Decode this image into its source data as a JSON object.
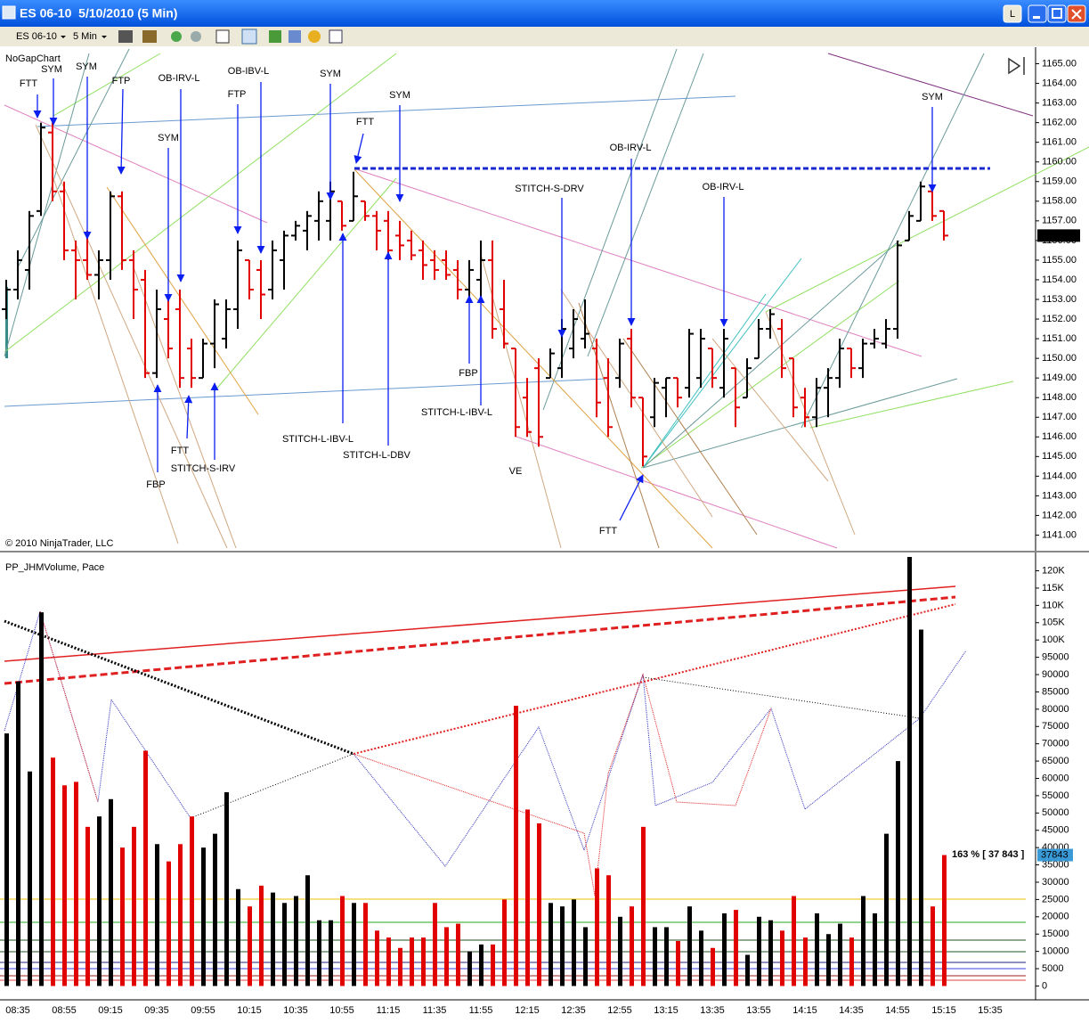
{
  "window": {
    "title": "ES 06-10  5/10/2010 (5 Min)",
    "button": "L"
  },
  "toolbar": {
    "instrument": "ES 06-10",
    "interval": "5 Min"
  },
  "price_panel": {
    "label": "NoGapChart",
    "copyright": "© 2010 NinjaTrader, LLC",
    "ylim": [
      1140.25,
      1165.75
    ],
    "yticks": [
      {
        "value": 1141,
        "label": "1141.00"
      },
      {
        "value": 1142,
        "label": "1142.00"
      },
      {
        "value": 1143,
        "label": "1143.00"
      },
      {
        "value": 1144,
        "label": "1144.00"
      },
      {
        "value": 1145,
        "label": "1145.00"
      },
      {
        "value": 1146,
        "label": "1146.00"
      },
      {
        "value": 1147,
        "label": "1147.00"
      },
      {
        "value": 1148,
        "label": "1148.00"
      },
      {
        "value": 1149,
        "label": "1149.00"
      },
      {
        "value": 1150,
        "label": "1150.00"
      },
      {
        "value": 1151,
        "label": "1151.00"
      },
      {
        "value": 1152,
        "label": "1152.00"
      },
      {
        "value": 1153,
        "label": "1153.00"
      },
      {
        "value": 1154,
        "label": "1154.00"
      },
      {
        "value": 1155,
        "label": "1155.00"
      },
      {
        "value": 1156,
        "label": "1156.00"
      },
      {
        "value": 1157,
        "label": "1157.00"
      },
      {
        "value": 1158,
        "label": "1158.00"
      },
      {
        "value": 1159,
        "label": "1159.00"
      },
      {
        "value": 1160,
        "label": "1160.00"
      },
      {
        "value": 1161,
        "label": "1161.00"
      },
      {
        "value": 1162,
        "label": "1162.00"
      },
      {
        "value": 1163,
        "label": "1163.00"
      },
      {
        "value": 1164,
        "label": "1164.00"
      },
      {
        "value": 1165,
        "label": "1165.00"
      }
    ],
    "last_price": 1156.25,
    "up_color": "#000000",
    "down_color": "#e00000",
    "annotations": [
      "FTT",
      "SYM",
      "SYM",
      "FTP",
      "OB-IRV-L",
      "SYM",
      "OB-IBV-L",
      "FTP",
      "SYM",
      "FTT",
      "SYM",
      "STITCH-S-DRV",
      "OB-IRV-L",
      "OB-IRV-L",
      "SYM",
      "FBP",
      "STITCH-L-IBV-L",
      "STITCH-L-IBV-L",
      "STITCH-L-DBV",
      "FBP",
      "FTT",
      "STITCH-S-IRV",
      "VE",
      "FTT"
    ],
    "ohlc": [
      [
        1152.5,
        1154,
        1152,
        1153.5
      ],
      [
        1153.5,
        1155.5,
        1153,
        1155
      ],
      [
        1154.5,
        1157.5,
        1153.5,
        1157.25
      ],
      [
        1157.5,
        1162,
        1157.25,
        1161.75
      ],
      [
        1161.5,
        1162,
        1158,
        1158.5
      ],
      [
        1158.5,
        1159,
        1155,
        1155.5
      ],
      [
        1155.5,
        1156,
        1153,
        1155
      ],
      [
        1155,
        1156.5,
        1154,
        1154.25
      ],
      [
        1154.25,
        1155.5,
        1153,
        1155
      ],
      [
        1155,
        1158.5,
        1154,
        1158.25
      ],
      [
        1158.25,
        1158.5,
        1154.5,
        1155
      ],
      [
        1155,
        1155.5,
        1152,
        1153.5
      ],
      [
        1154,
        1154.5,
        1149,
        1149.25
      ],
      [
        1149.25,
        1153.5,
        1149,
        1152.5
      ],
      [
        1152,
        1153,
        1150,
        1150.5
      ],
      [
        1152.5,
        1153.5,
        1148.5,
        1149
      ],
      [
        1150.5,
        1151,
        1148.5,
        1149
      ],
      [
        1149,
        1151,
        1149,
        1150.75
      ],
      [
        1150.75,
        1153,
        1149.5,
        1152.75
      ],
      [
        1151,
        1153,
        1150.5,
        1152.5
      ],
      [
        1152.5,
        1156,
        1151.5,
        1155.5
      ],
      [
        1155,
        1155,
        1153,
        1153.5
      ],
      [
        1154.5,
        1155,
        1152,
        1153.25
      ],
      [
        1153.5,
        1156,
        1153,
        1155.5
      ],
      [
        1155,
        1156.5,
        1153.5,
        1156.25
      ],
      [
        1156.25,
        1157,
        1156,
        1156.75
      ],
      [
        1156.5,
        1157.5,
        1155.5,
        1157.25
      ],
      [
        1157,
        1158.5,
        1156,
        1158
      ],
      [
        1157,
        1159,
        1156,
        1158.5
      ],
      [
        1158,
        1158,
        1156.5,
        1156.75
      ],
      [
        1157,
        1159.5,
        1157,
        1158.25
      ],
      [
        1158,
        1158,
        1157,
        1157.25
      ],
      [
        1157.25,
        1157.5,
        1155.5,
        1156.5
      ],
      [
        1157,
        1157.5,
        1155,
        1155.5
      ],
      [
        1156.25,
        1157,
        1155,
        1155.75
      ],
      [
        1156,
        1156.5,
        1155,
        1155.25
      ],
      [
        1155.5,
        1156,
        1154,
        1154.75
      ],
      [
        1155,
        1155.5,
        1154,
        1154.5
      ],
      [
        1155,
        1155.5,
        1154,
        1154.25
      ],
      [
        1154.5,
        1155,
        1153,
        1153.5
      ],
      [
        1153.5,
        1155,
        1153,
        1154.5
      ],
      [
        1154,
        1156,
        1153,
        1155
      ],
      [
        1155,
        1156,
        1151,
        1151.5
      ],
      [
        1152.5,
        1154,
        1150.5,
        1150.75
      ],
      [
        1150.5,
        1150.5,
        1146,
        1146.5
      ],
      [
        1148,
        1149,
        1146,
        1146.25
      ],
      [
        1149.5,
        1150,
        1145.5,
        1146
      ],
      [
        1149,
        1150.5,
        1149,
        1150.25
      ],
      [
        1149.5,
        1152,
        1149,
        1151.5
      ],
      [
        1150.5,
        1152.5,
        1150,
        1152
      ],
      [
        1151,
        1153,
        1150.5,
        1151.25
      ],
      [
        1150.5,
        1151,
        1147,
        1147.75
      ],
      [
        1149,
        1150,
        1146,
        1146.5
      ],
      [
        1149,
        1151,
        1148.5,
        1150.75
      ],
      [
        1151,
        1151.5,
        1147.5,
        1148
      ],
      [
        1148,
        1148,
        1144.5,
        1145
      ],
      [
        1147,
        1149,
        1146.5,
        1148.75
      ],
      [
        1148.5,
        1149,
        1147,
        1149
      ],
      [
        1149,
        1149,
        1147.5,
        1148
      ],
      [
        1148.5,
        1151.5,
        1148,
        1151.25
      ],
      [
        1149,
        1151.5,
        1148.5,
        1151
      ],
      [
        1150.5,
        1150.5,
        1148.5,
        1149
      ],
      [
        1148.5,
        1151.5,
        1148,
        1151
      ],
      [
        1149.5,
        1149.5,
        1146.5,
        1147.5
      ],
      [
        1148,
        1150,
        1148,
        1149.5
      ],
      [
        1150,
        1152,
        1150,
        1151.5
      ],
      [
        1151.5,
        1152.5,
        1151,
        1152.25
      ],
      [
        1151.5,
        1152,
        1149,
        1149.5
      ],
      [
        1150,
        1150,
        1147,
        1147.5
      ],
      [
        1148,
        1148.5,
        1146.5,
        1147
      ],
      [
        1147,
        1149,
        1146.5,
        1148.5
      ],
      [
        1148.5,
        1149.5,
        1147,
        1149
      ],
      [
        1149,
        1151,
        1148.5,
        1150.5
      ],
      [
        1150.5,
        1150.5,
        1149,
        1149.5
      ],
      [
        1149.5,
        1151,
        1149,
        1150.75
      ],
      [
        1150.75,
        1151.5,
        1150.5,
        1151
      ],
      [
        1150.75,
        1152,
        1150.5,
        1151.5
      ],
      [
        1151.5,
        1156,
        1151,
        1155.75
      ],
      [
        1156,
        1157.5,
        1156,
        1157.25
      ],
      [
        1157,
        1159,
        1157,
        1158.75
      ],
      [
        1158.5,
        1158.5,
        1157,
        1157.25
      ],
      [
        1157.5,
        1157.5,
        1156,
        1156.25
      ]
    ]
  },
  "volume_panel": {
    "label": "PP_JHMVolume, Pace",
    "pace_label": "163 % [ 37 843 ]",
    "ylim": [
      -4000,
      124000
    ],
    "yticks": [
      0,
      5000,
      10000,
      15000,
      20000,
      25000,
      30000,
      35000,
      40000,
      45000,
      50000,
      55000,
      60000,
      65000,
      70000,
      75000,
      80000,
      85000,
      90000,
      95000,
      {
        "value": 100000,
        "label": "100K"
      },
      {
        "value": 105000,
        "label": "105K"
      },
      {
        "value": 110000,
        "label": "110K"
      },
      {
        "value": 115000,
        "label": "115K"
      },
      {
        "value": 120000,
        "label": "120K"
      }
    ],
    "values": [
      73000,
      88000,
      62000,
      108000,
      66000,
      58000,
      59000,
      46000,
      49000,
      54000,
      40000,
      46000,
      68000,
      41000,
      36000,
      41000,
      49000,
      40000,
      44000,
      56000,
      28000,
      23000,
      29000,
      27000,
      24000,
      26000,
      32000,
      19000,
      19000,
      26000,
      24000,
      24000,
      16000,
      14000,
      11000,
      14000,
      14000,
      24000,
      17000,
      18000,
      10000,
      12000,
      12000,
      25000,
      81000,
      51000,
      47000,
      24000,
      23000,
      25000,
      17000,
      34000,
      32000,
      20000,
      23000,
      46000,
      17000,
      17000,
      13000,
      23000,
      16000,
      11000,
      21000,
      22000,
      9000,
      20000,
      19000,
      16000,
      26000,
      14000,
      21000,
      15000,
      18000,
      14000,
      26000,
      21000,
      44000,
      65000,
      124000,
      103000,
      23000,
      37843
    ]
  },
  "time_axis": {
    "ticks": [
      "08:35",
      "08:55",
      "09:15",
      "09:35",
      "09:55",
      "10:15",
      "10:35",
      "10:55",
      "11:15",
      "11:35",
      "11:55",
      "12:15",
      "12:35",
      "12:55",
      "13:15",
      "13:35",
      "13:55",
      "14:15",
      "14:35",
      "14:55",
      "15:15",
      "15:35"
    ]
  }
}
